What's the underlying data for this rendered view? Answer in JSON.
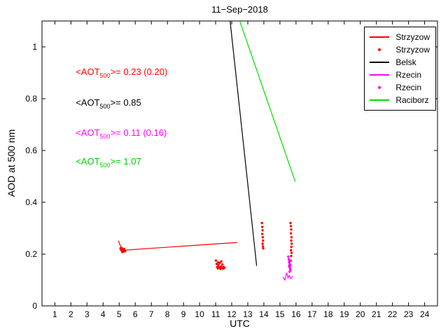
{
  "chart_data": {
    "type": "line",
    "title": "11−Sep−2018",
    "xlabel": "UTC",
    "ylabel": "AOD at 500 nm",
    "xlim": [
      0.2,
      24.8
    ],
    "ylim": [
      0,
      1.1
    ],
    "xticks": [
      1,
      2,
      3,
      4,
      5,
      6,
      7,
      8,
      9,
      10,
      11,
      12,
      13,
      14,
      15,
      16,
      17,
      18,
      19,
      20,
      21,
      22,
      23,
      24
    ],
    "yticks": [
      {
        "v": 0,
        "label": "0"
      },
      {
        "v": 0.2,
        "label": "0.2"
      },
      {
        "v": 0.4,
        "label": "0.4"
      },
      {
        "v": 0.6,
        "label": "0.6"
      },
      {
        "v": 0.8,
        "label": "0.8"
      },
      {
        "v": 1,
        "label": "1"
      }
    ],
    "legend": [
      {
        "label": "Strzyzow",
        "color": "#ff0000",
        "marker": "line"
      },
      {
        "label": "Strzyzow",
        "color": "#ff0000",
        "marker": "dot"
      },
      {
        "label": "Belsk",
        "color": "#000000",
        "marker": "line"
      },
      {
        "label": "Rzecin",
        "color": "#ff00ff",
        "marker": "line"
      },
      {
        "label": "Rzecin",
        "color": "#ff00ff",
        "marker": "dot"
      },
      {
        "label": "Raciborz",
        "color": "#00dd00",
        "marker": "line"
      }
    ],
    "annotations": [
      {
        "pre": "<AOT",
        "sub": "500",
        "post": ">= 0.23 (0.20)",
        "color": "#ff0000",
        "x": 2.3,
        "y": 0.9
      },
      {
        "pre": "<AOT",
        "sub": "500",
        "post": ">= 0.85",
        "color": "#000000",
        "x": 2.3,
        "y": 0.78
      },
      {
        "pre": "<AOT",
        "sub": "500",
        "post": ">= 0.11 (0.16)",
        "color": "#ff00ff",
        "x": 2.3,
        "y": 0.665
      },
      {
        "pre": "<AOT",
        "sub": "500",
        "post": ">= 1.07",
        "color": "#00cc00",
        "x": 2.3,
        "y": 0.555
      }
    ],
    "series": [
      {
        "name": "Strzyzow",
        "type": "line",
        "color": "#ff0000",
        "points": [
          [
            4.95,
            0.252
          ],
          [
            5.1,
            0.228
          ],
          [
            5.22,
            0.215
          ],
          [
            12.35,
            0.245
          ]
        ]
      },
      {
        "name": "Strzyzow",
        "type": "scatter",
        "color": "#ff0000",
        "points": [
          [
            5.08,
            0.222
          ],
          [
            5.13,
            0.216
          ],
          [
            5.18,
            0.212
          ],
          [
            5.22,
            0.218
          ],
          [
            5.27,
            0.21
          ],
          [
            5.32,
            0.214
          ],
          [
            5.37,
            0.211
          ],
          [
            5.2,
            0.208
          ],
          [
            5.3,
            0.22
          ],
          [
            5.15,
            0.224
          ],
          [
            11.02,
            0.175
          ],
          [
            11.06,
            0.162
          ],
          [
            11.1,
            0.15
          ],
          [
            11.14,
            0.145
          ],
          [
            11.18,
            0.158
          ],
          [
            11.22,
            0.149
          ],
          [
            11.26,
            0.166
          ],
          [
            11.3,
            0.143
          ],
          [
            11.34,
            0.152
          ],
          [
            11.38,
            0.147
          ],
          [
            11.42,
            0.16
          ],
          [
            11.46,
            0.144
          ],
          [
            11.5,
            0.15
          ],
          [
            11.55,
            0.147
          ],
          [
            11.35,
            0.172
          ],
          [
            11.15,
            0.168
          ],
          [
            13.88,
            0.32
          ],
          [
            13.9,
            0.305
          ],
          [
            13.92,
            0.292
          ],
          [
            13.9,
            0.278
          ],
          [
            13.93,
            0.265
          ],
          [
            13.95,
            0.252
          ],
          [
            13.92,
            0.24
          ],
          [
            13.94,
            0.23
          ],
          [
            13.96,
            0.222
          ],
          [
            15.66,
            0.32
          ],
          [
            15.68,
            0.308
          ],
          [
            15.7,
            0.295
          ],
          [
            15.68,
            0.28
          ],
          [
            15.72,
            0.265
          ],
          [
            15.7,
            0.252
          ],
          [
            15.73,
            0.24
          ],
          [
            15.71,
            0.228
          ],
          [
            15.69,
            0.215
          ],
          [
            15.72,
            0.205
          ],
          [
            15.7,
            0.193
          ],
          [
            15.6,
            0.172
          ],
          [
            15.62,
            0.16
          ],
          [
            15.58,
            0.154
          ]
        ]
      },
      {
        "name": "Belsk",
        "type": "line",
        "color": "#000000",
        "points": [
          [
            11.9,
            1.1
          ],
          [
            13.55,
            0.155
          ]
        ]
      },
      {
        "name": "Rzecin",
        "type": "line",
        "color": "#ff00ff",
        "points": [
          [
            15.18,
            0.112
          ],
          [
            15.3,
            0.1
          ],
          [
            15.42,
            0.128
          ],
          [
            15.5,
            0.108
          ],
          [
            15.58,
            0.118
          ],
          [
            15.68,
            0.105
          ],
          [
            15.8,
            0.115
          ]
        ]
      },
      {
        "name": "Rzecin",
        "type": "scatter",
        "color": "#ff00ff",
        "points": [
          [
            15.52,
            0.19
          ],
          [
            15.55,
            0.18
          ],
          [
            15.57,
            0.17
          ],
          [
            15.6,
            0.162
          ],
          [
            15.58,
            0.152
          ],
          [
            15.62,
            0.145
          ],
          [
            15.65,
            0.138
          ],
          [
            15.6,
            0.132
          ],
          [
            15.68,
            0.175
          ],
          [
            15.64,
            0.155
          ]
        ]
      },
      {
        "name": "Raciborz",
        "type": "line",
        "color": "#00dd00",
        "points": [
          [
            12.5,
            1.1
          ],
          [
            15.95,
            0.48
          ]
        ]
      }
    ]
  }
}
